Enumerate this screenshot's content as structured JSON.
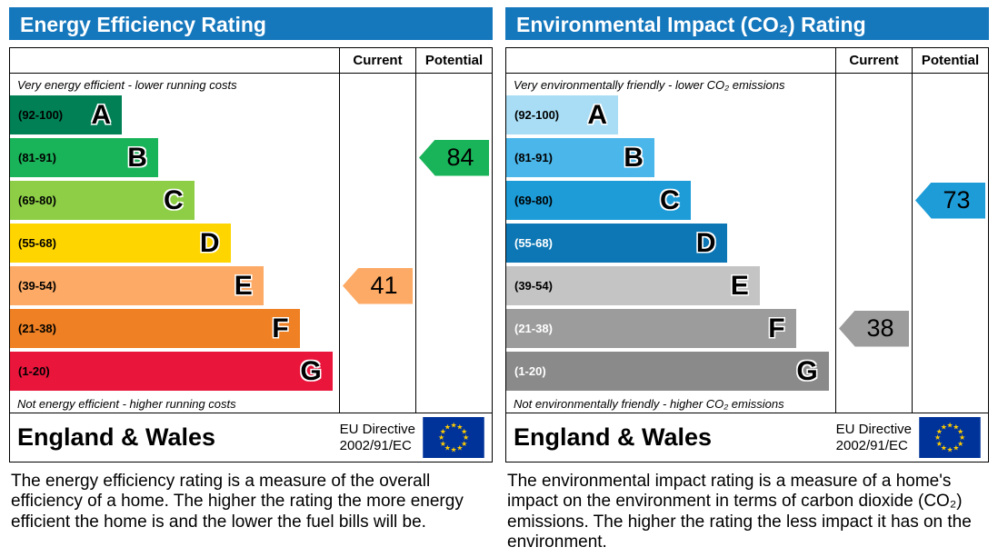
{
  "panels": [
    {
      "title": "Energy Efficiency Rating",
      "header": {
        "current": "Current",
        "potential": "Potential"
      },
      "top_caption": "Very energy efficient - lower running costs",
      "bottom_caption": "Not energy efficient - higher running costs",
      "bands": [
        {
          "range": "(92-100)",
          "letter": "A",
          "color": "#008054",
          "width_pct": 34,
          "text_color": "#000000"
        },
        {
          "range": "(81-91)",
          "letter": "B",
          "color": "#19b459",
          "width_pct": 45,
          "text_color": "#000000"
        },
        {
          "range": "(69-80)",
          "letter": "C",
          "color": "#8dce46",
          "width_pct": 56,
          "text_color": "#000000"
        },
        {
          "range": "(55-68)",
          "letter": "D",
          "color": "#ffd500",
          "width_pct": 67,
          "text_color": "#000000"
        },
        {
          "range": "(39-54)",
          "letter": "E",
          "color": "#fcaa65",
          "width_pct": 77,
          "text_color": "#000000"
        },
        {
          "range": "(21-38)",
          "letter": "F",
          "color": "#ef8023",
          "width_pct": 88,
          "text_color": "#000000"
        },
        {
          "range": "(1-20)",
          "letter": "G",
          "color": "#e9153b",
          "width_pct": 98,
          "text_color": "#000000"
        }
      ],
      "current": {
        "value": "41",
        "band_index": 4,
        "color": "#fcaa65"
      },
      "potential": {
        "value": "84",
        "band_index": 1,
        "color": "#19b459"
      },
      "footer": {
        "region": "England & Wales",
        "directive": [
          "EU Directive",
          "2002/91/EC"
        ]
      },
      "description": "The energy efficiency rating is a measure of the overall efficiency of a home. The higher the rating the more energy efficient the home is and the lower the fuel bills will be."
    },
    {
      "title": "Environmental Impact (CO₂) Rating",
      "header": {
        "current": "Current",
        "potential": "Potential"
      },
      "top_caption": "Very environmentally friendly - lower CO₂ emissions",
      "bottom_caption": "Not environmentally friendly - higher CO₂ emissions",
      "bands": [
        {
          "range": "(92-100)",
          "letter": "A",
          "color": "#a8ddf5",
          "width_pct": 34,
          "text_color": "#000000"
        },
        {
          "range": "(81-91)",
          "letter": "B",
          "color": "#4ab6ea",
          "width_pct": 45,
          "text_color": "#000000"
        },
        {
          "range": "(69-80)",
          "letter": "C",
          "color": "#1d9cd8",
          "width_pct": 56,
          "text_color": "#000000"
        },
        {
          "range": "(55-68)",
          "letter": "D",
          "color": "#0c77b4",
          "width_pct": 67,
          "text_color": "#ffffff"
        },
        {
          "range": "(39-54)",
          "letter": "E",
          "color": "#c4c4c4",
          "width_pct": 77,
          "text_color": "#000000"
        },
        {
          "range": "(21-38)",
          "letter": "F",
          "color": "#9c9c9c",
          "width_pct": 88,
          "text_color": "#ffffff"
        },
        {
          "range": "(1-20)",
          "letter": "G",
          "color": "#8a8a8a",
          "width_pct": 98,
          "text_color": "#ffffff"
        }
      ],
      "current": {
        "value": "38",
        "band_index": 5,
        "color": "#9c9c9c"
      },
      "potential": {
        "value": "73",
        "band_index": 2,
        "color": "#1d9cd8"
      },
      "footer": {
        "region": "England & Wales",
        "directive": [
          "EU Directive",
          "2002/91/EC"
        ]
      },
      "description": "The environmental impact rating is a measure of a home's impact on the environment in terms of carbon dioxide (CO₂) emissions. The higher the rating the less impact it has on the environment."
    }
  ],
  "flag": {
    "bg": "#003399",
    "star": "#ffcc00"
  },
  "chart_data": [
    {
      "type": "bar",
      "title": "Energy Efficiency Rating",
      "categories": [
        "A (92-100)",
        "B (81-91)",
        "C (69-80)",
        "D (55-68)",
        "E (39-54)",
        "F (21-38)",
        "G (1-20)"
      ],
      "bar_lengths_pct": [
        34,
        45,
        56,
        67,
        77,
        88,
        98
      ],
      "markers": [
        {
          "name": "Current",
          "value": 41,
          "band": "E"
        },
        {
          "name": "Potential",
          "value": 84,
          "band": "B"
        }
      ],
      "top_caption": "Very energy efficient - lower running costs",
      "bottom_caption": "Not energy efficient - higher running costs"
    },
    {
      "type": "bar",
      "title": "Environmental Impact (CO₂) Rating",
      "categories": [
        "A (92-100)",
        "B (81-91)",
        "C (69-80)",
        "D (55-68)",
        "E (39-54)",
        "F (21-38)",
        "G (1-20)"
      ],
      "bar_lengths_pct": [
        34,
        45,
        56,
        67,
        77,
        88,
        98
      ],
      "markers": [
        {
          "name": "Current",
          "value": 38,
          "band": "F"
        },
        {
          "name": "Potential",
          "value": 73,
          "band": "C"
        }
      ],
      "top_caption": "Very environmentally friendly - lower CO₂ emissions",
      "bottom_caption": "Not environmentally friendly - higher CO₂ emissions"
    }
  ]
}
